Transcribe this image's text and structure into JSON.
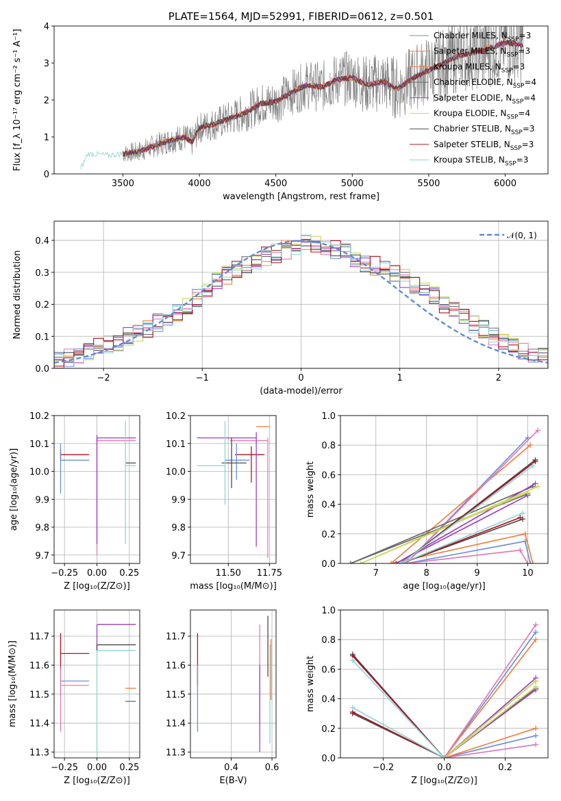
{
  "palette": [
    "#6a8fd8",
    "#f08040",
    "#e07ab8",
    "#6a6a6a",
    "#9a3fc0",
    "#c8d95a",
    "#4a4a4a",
    "#b01020",
    "#8fd4d4"
  ],
  "chart_data": [
    {
      "id": "spectrum",
      "type": "line",
      "title": "PLATE=1564, MJD=52991, FIBERID=0612, z=0.501",
      "xlabel": "wavelength [Angstrom, rest frame]",
      "ylabel": "Flux [f_λ 10⁻¹⁷ erg cm⁻² s⁻¹ A⁻¹]",
      "xlim": [
        3050,
        6280
      ],
      "ylim": [
        0,
        4
      ],
      "xticks": [
        3500,
        4000,
        4500,
        5000,
        5500,
        6000
      ],
      "yticks": [
        0,
        1,
        2,
        3,
        4
      ],
      "legend_position": "top-right",
      "legend": [
        "Chabrier MILES, N_SSP=3",
        "Salpeter MILES, N_SSP=3",
        "Kroupa MILES, N_SSP=3",
        "Chabrier ELODIE, N_SSP=4",
        "Salpeter ELODIE, N_SSP=4",
        "Kroupa ELODIE, N_SSP=4",
        "Chabrier STELIB, N_SSP=3",
        "Salpeter STELIB, N_SSP=3",
        "Kroupa STELIB, N_SSP=3"
      ],
      "legend_colors": [
        "#6a8fd8",
        "#f08040",
        "#f08040",
        "#6a6a6a",
        "#9a3fc0",
        "#c8d95a",
        "#4a4a4a",
        "#b01020",
        "#8fd4d4"
      ],
      "model_x": [
        3220,
        3270,
        3400,
        3500,
        3600,
        3700,
        3800,
        3900,
        3950,
        4000,
        4100,
        4200,
        4300,
        4400,
        4500,
        4600,
        4700,
        4800,
        4900,
        5000,
        5100,
        5200,
        5300,
        5400,
        5500,
        5600,
        5700,
        5800,
        5900,
        6000,
        6100
      ],
      "model_y": [
        0.1,
        0.55,
        0.5,
        0.55,
        0.6,
        0.75,
        0.9,
        1.0,
        0.85,
        1.25,
        1.35,
        1.5,
        1.65,
        1.9,
        1.95,
        2.2,
        2.4,
        2.35,
        2.55,
        2.6,
        2.4,
        2.5,
        2.3,
        2.6,
        2.8,
        3.0,
        3.2,
        3.3,
        3.4,
        3.55,
        3.5
      ],
      "data_x_range": [
        3500,
        6120
      ],
      "kroupa_stelib_start_x": 3220
    },
    {
      "id": "residuals",
      "type": "histogram",
      "xlabel": "(data-model)/error",
      "ylabel": "Normed distribution",
      "xlim": [
        -2.5,
        2.5
      ],
      "ylim": [
        0,
        0.46
      ],
      "xticks": [
        -2,
        -1,
        0,
        1,
        2
      ],
      "yticks": [
        0.0,
        0.1,
        0.2,
        0.3,
        0.4
      ],
      "legend": [
        "𝒩(0, 1)"
      ],
      "legend_position": "top-right",
      "bins": [
        -2.5,
        2.5,
        50
      ],
      "base_values": [
        0.028,
        0.034,
        0.042,
        0.052,
        0.064,
        0.075,
        0.078,
        0.1,
        0.11,
        0.12,
        0.14,
        0.16,
        0.17,
        0.2,
        0.22,
        0.25,
        0.27,
        0.29,
        0.31,
        0.32,
        0.33,
        0.35,
        0.36,
        0.37,
        0.38,
        0.39,
        0.39,
        0.38,
        0.37,
        0.36,
        0.34,
        0.33,
        0.32,
        0.31,
        0.3,
        0.28,
        0.26,
        0.25,
        0.23,
        0.2,
        0.18,
        0.16,
        0.14,
        0.12,
        0.1,
        0.08,
        0.07,
        0.055,
        0.045,
        0.035
      ]
    },
    {
      "id": "age_vs_Z",
      "type": "errorbar",
      "xlabel": "Z [log₁₀(Z/Z⊙)]",
      "ylabel": "age  [log₁₀(age/yr)]",
      "xlim": [
        -0.33,
        0.33
      ],
      "ylim": [
        9.67,
        10.2
      ],
      "xticks": [
        -0.25,
        0.0,
        0.25
      ],
      "yticks": [
        9.7,
        9.8,
        9.9,
        10.0,
        10.1,
        10.2
      ],
      "points": [
        {
          "x": -0.28,
          "y": 10.06,
          "xerr": [
            0,
            0.22
          ],
          "yerr": [
            0.02,
            0.02
          ]
        },
        {
          "x": -0.28,
          "y": 10.04,
          "xerr": [
            0,
            0.22
          ],
          "yerr": [
            0.12,
            0.06
          ]
        },
        {
          "x": 0,
          "y": 10.11,
          "xerr": [
            0,
            0.3
          ],
          "yerr": [
            0.41,
            0.01
          ]
        },
        {
          "x": 0,
          "y": 10.12,
          "xerr": [
            0,
            0.3
          ],
          "yerr": [
            0.38,
            0.01
          ]
        },
        {
          "x": 0.22,
          "y": 10.03,
          "xerr": [
            0,
            0.08
          ],
          "yerr": [
            0,
            0
          ]
        },
        {
          "x": 0.22,
          "y": 10.02,
          "xerr": [
            0,
            0.08
          ],
          "yerr": [
            0.28,
            0.16
          ]
        }
      ]
    },
    {
      "id": "age_vs_mass",
      "type": "errorbar",
      "xlabel": "mass [log₁₀(M/M⊙)]",
      "ylabel": "",
      "xlim": [
        11.27,
        11.79
      ],
      "ylim": [
        9.67,
        10.2
      ],
      "xticks": [
        11.5,
        11.75
      ],
      "yticks": [
        9.7,
        9.8,
        9.9,
        10.0,
        10.1,
        10.2
      ],
      "points": [
        {
          "x": 11.64,
          "y": 10.06,
          "xerr": [
            0.1,
            0.08
          ],
          "yerr": [
            0.1,
            0.03
          ]
        },
        {
          "x": 11.55,
          "y": 10.04,
          "xerr": [
            0.07,
            0.08
          ],
          "yerr": [
            0.07,
            0.06
          ]
        },
        {
          "x": 11.74,
          "y": 10.11,
          "xerr": [
            0.23,
            0
          ],
          "yerr": [
            0.42,
            0.01
          ]
        },
        {
          "x": 11.67,
          "y": 10.12,
          "xerr": [
            0.36,
            0
          ],
          "yerr": [
            0.39,
            0.02
          ]
        },
        {
          "x": 11.52,
          "y": 10.03,
          "xerr": [
            0.06,
            0.09
          ],
          "yerr": [
            0.09,
            0.09
          ]
        },
        {
          "x": 11.48,
          "y": 10.02,
          "xerr": [
            0.17,
            0.0
          ],
          "yerr": [
            0.14,
            0.16
          ]
        },
        {
          "x": 11.7,
          "y": 10.16,
          "xerr": [
            0.03,
            0.05
          ],
          "yerr": [
            0,
            0
          ]
        }
      ]
    },
    {
      "id": "weight_vs_age",
      "type": "line",
      "xlabel": "age  [log₁₀(age/yr)]",
      "ylabel": "mass weight",
      "xlim": [
        6.3,
        10.4
      ],
      "ylim": [
        0,
        1
      ],
      "xticks": [
        7,
        8,
        9,
        10
      ],
      "yticks": [
        0.0,
        0.2,
        0.4,
        0.6,
        0.8,
        1.0
      ],
      "series": [
        {
          "x": [
            10.0,
            7.6,
            9.95,
            10.05
          ],
          "y": [
            0.85,
            0.0,
            0.15,
            0.0
          ]
        },
        {
          "x": [
            10.05,
            7.3,
            9.95,
            10.1
          ],
          "y": [
            0.8,
            0.0,
            0.2,
            0.0
          ]
        },
        {
          "x": [
            10.2,
            7.6,
            9.85,
            10.0
          ],
          "y": [
            0.9,
            0.0,
            0.09,
            0.0
          ]
        },
        {
          "x": [
            10.1,
            6.5,
            10.0
          ],
          "y": [
            0.52,
            0.0,
            0.47
          ]
        },
        {
          "x": [
            10.15,
            7.4,
            10.0
          ],
          "y": [
            0.54,
            0.0,
            0.46
          ]
        },
        {
          "x": [
            10.2,
            6.7,
            10.0
          ],
          "y": [
            0.52,
            0.0,
            0.48
          ]
        },
        {
          "x": [
            10.15,
            7.5,
            9.9
          ],
          "y": [
            0.7,
            0.0,
            0.3
          ]
        },
        {
          "x": [
            10.15,
            7.5,
            9.85
          ],
          "y": [
            0.69,
            0.0,
            0.31
          ]
        },
        {
          "x": [
            10.1,
            7.5,
            9.9
          ],
          "y": [
            0.66,
            0.0,
            0.34
          ]
        }
      ]
    },
    {
      "id": "mass_vs_Z",
      "type": "errorbar",
      "xlabel": "Z [log₁₀(Z/Z⊙)]",
      "ylabel": "mass [log₁₀(M/M⊙)]",
      "xlim": [
        -0.33,
        0.33
      ],
      "ylim": [
        11.28,
        11.79
      ],
      "xticks": [
        -0.25,
        0.0,
        0.25
      ],
      "yticks": [
        11.3,
        11.4,
        11.5,
        11.6,
        11.7
      ],
      "points": [
        {
          "x": -0.28,
          "y": 11.64,
          "xerr": [
            0,
            0.22
          ],
          "yerr": [
            0.06,
            0.07
          ]
        },
        {
          "x": -0.28,
          "y": 11.545,
          "xerr": [
            0,
            0.22
          ],
          "yerr": [
            0.05,
            0.05
          ]
        },
        {
          "x": -0.28,
          "y": 11.53,
          "xerr": [
            0,
            0.22
          ],
          "yerr": [
            0.16,
            0.06
          ]
        },
        {
          "x": 0,
          "y": 11.74,
          "xerr": [
            0,
            0.3
          ],
          "yerr": [
            0.09,
            0.0
          ]
        },
        {
          "x": 0,
          "y": 11.67,
          "xerr": [
            0,
            0.3
          ],
          "yerr": [
            0.02,
            0.0
          ]
        },
        {
          "x": 0,
          "y": 11.65,
          "xerr": [
            0,
            0.3
          ],
          "yerr": [
            0.36,
            0.0
          ]
        },
        {
          "x": 0.22,
          "y": 11.52,
          "xerr": [
            0,
            0.08
          ],
          "yerr": [
            0,
            0
          ]
        },
        {
          "x": 0.22,
          "y": 11.475,
          "xerr": [
            0,
            0.08
          ],
          "yerr": [
            0,
            0
          ]
        }
      ]
    },
    {
      "id": "mass_vs_ebv",
      "type": "errorbar",
      "xlabel": "E(B-V)",
      "ylabel": "",
      "xlim": [
        0.2,
        0.62
      ],
      "ylim": [
        11.28,
        11.79
      ],
      "xticks": [
        0.4,
        0.6
      ],
      "yticks": [
        11.3,
        11.4,
        11.5,
        11.6,
        11.7
      ],
      "points": [
        {
          "x": 0.235,
          "y": 11.6,
          "xerr": [
            0,
            0
          ],
          "yerr": [
            0.07,
            0.11
          ]
        },
        {
          "x": 0.235,
          "y": 11.5,
          "xerr": [
            0,
            0
          ],
          "yerr": [
            0.13,
            0.1
          ]
        },
        {
          "x": 0.54,
          "y": 11.64,
          "xerr": [
            0,
            0
          ],
          "yerr": [
            0.24,
            0.1
          ]
        },
        {
          "x": 0.54,
          "y": 11.6,
          "xerr": [
            0,
            0
          ],
          "yerr": [
            0.3,
            0.0
          ]
        },
        {
          "x": 0.58,
          "y": 11.56,
          "xerr": [
            0,
            0
          ],
          "yerr": [
            0.0,
            0.21
          ]
        },
        {
          "x": 0.59,
          "y": 11.55,
          "xerr": [
            0,
            0
          ],
          "yerr": [
            0.22,
            0.12
          ]
        },
        {
          "x": 0.595,
          "y": 11.6,
          "xerr": [
            0,
            0
          ],
          "yerr": [
            0.12,
            0.09
          ]
        }
      ]
    },
    {
      "id": "weight_vs_Z",
      "type": "line",
      "xlabel": "Z [log₁₀(Z/Z⊙)]",
      "ylabel": "mass weight",
      "xlim": [
        -0.34,
        0.34
      ],
      "ylim": [
        0,
        1
      ],
      "xticks": [
        -0.2,
        0.0,
        0.2
      ],
      "yticks": [
        0.0,
        0.2,
        0.4,
        0.6,
        0.8,
        1.0
      ],
      "series": [
        {
          "x": [
            0.3,
            0.0,
            0.3
          ],
          "y": [
            0.85,
            0.0,
            0.15
          ]
        },
        {
          "x": [
            0.3,
            0.0,
            0.3
          ],
          "y": [
            0.8,
            0.0,
            0.2
          ]
        },
        {
          "x": [
            0.3,
            0.0,
            0.3
          ],
          "y": [
            0.9,
            0.0,
            0.09
          ]
        },
        {
          "x": [
            0.3,
            0.0,
            0.3
          ],
          "y": [
            0.52,
            0.0,
            0.47
          ]
        },
        {
          "x": [
            0.3,
            0.0,
            0.3
          ],
          "y": [
            0.54,
            0.0,
            0.46
          ]
        },
        {
          "x": [
            0.3,
            0.0,
            0.3
          ],
          "y": [
            0.52,
            0.0,
            0.48
          ]
        },
        {
          "x": [
            -0.3,
            0.0,
            -0.3
          ],
          "y": [
            0.7,
            0.0,
            0.3
          ]
        },
        {
          "x": [
            -0.3,
            0.0,
            -0.3
          ],
          "y": [
            0.69,
            0.0,
            0.31
          ]
        },
        {
          "x": [
            -0.3,
            0.0,
            -0.3
          ],
          "y": [
            0.66,
            0.0,
            0.34
          ]
        }
      ]
    }
  ]
}
